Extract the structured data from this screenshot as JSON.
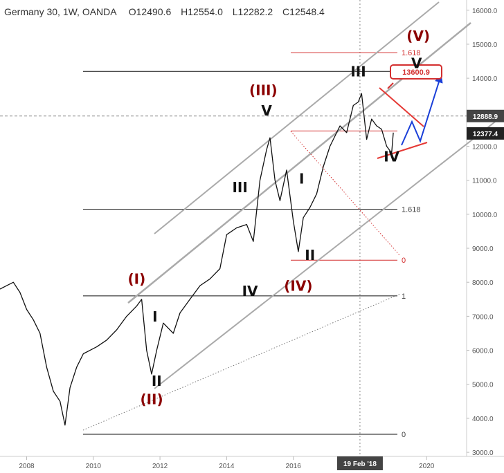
{
  "header": {
    "symbol_title": "Germany 30, 1W, OANDA",
    "open_label": "O",
    "open_value": "12490.6",
    "high_label": "H",
    "high_value": "12554.0",
    "low_label": "L",
    "low_value": "12282.2",
    "close_label": "C",
    "close_value": "12548.4"
  },
  "chart_data": {
    "type": "line",
    "title": "Germany 30, 1W, OANDA",
    "xlabel": "",
    "ylabel": "",
    "xlim": [
      2007.2,
      2021.2
    ],
    "ylim": [
      2880,
      16300
    ],
    "y_ticks": [
      "16000.0",
      "15000.0",
      "14000.0",
      "13000.0",
      "12000.0",
      "11000.0",
      "10000.0",
      "9000.0",
      "8000.0",
      "7000.0",
      "6000.0",
      "5000.0",
      "4000.0",
      "3000.0"
    ],
    "y_tick_values": [
      16000,
      15000,
      14000,
      13000,
      12000,
      11000,
      10000,
      9000,
      8000,
      7000,
      6000,
      5000,
      4000,
      3000
    ],
    "x_ticks": [
      "2008",
      "2010",
      "2012",
      "2014",
      "2016",
      "2020"
    ],
    "x_tick_values": [
      2008,
      2010,
      2012,
      2014,
      2016,
      2020
    ],
    "x_highlight_label": "19 Feb '18",
    "x_highlight_value": 2018.0,
    "price_badges": [
      {
        "label": "12888.9",
        "value": 12888.9,
        "color": "#444444"
      },
      {
        "label": "12377.4",
        "value": 12377.4,
        "color": "#222222"
      }
    ],
    "series": [
      {
        "x": [
          2007.2,
          2007.4,
          2007.6,
          2007.8,
          2008.0,
          2008.2,
          2008.4,
          2008.6,
          2008.8,
          2009.0,
          2009.15,
          2009.3,
          2009.5,
          2009.7,
          2009.9,
          2010.1,
          2010.4,
          2010.7,
          2011.0,
          2011.3,
          2011.45,
          2011.6,
          2011.75,
          2011.9,
          2012.1,
          2012.4,
          2012.6,
          2012.9,
          2013.2,
          2013.5,
          2013.8,
          2014.0,
          2014.3,
          2014.6,
          2014.8,
          2015.0,
          2015.2,
          2015.3,
          2015.45,
          2015.6,
          2015.8,
          2016.0,
          2016.15,
          2016.3,
          2016.5,
          2016.7,
          2016.9,
          2017.1,
          2017.4,
          2017.6,
          2017.8,
          2017.95,
          2018.05,
          2018.2,
          2018.35,
          2018.5,
          2018.65,
          2018.8,
          2018.95,
          2019.0
        ],
        "y": [
          7800,
          7900,
          8000,
          7700,
          7200,
          6900,
          6500,
          5500,
          4800,
          4500,
          3800,
          4900,
          5500,
          5900,
          6000,
          6100,
          6300,
          6600,
          7000,
          7300,
          7500,
          6000,
          5300,
          6000,
          6800,
          6500,
          7100,
          7500,
          7900,
          8100,
          8400,
          9400,
          9600,
          9700,
          9200,
          11000,
          11900,
          12250,
          11000,
          10400,
          11300,
          9800,
          8900,
          9900,
          10200,
          10600,
          11400,
          12000,
          12600,
          12400,
          13200,
          13300,
          13550,
          12200,
          12800,
          12600,
          12500,
          12000,
          11800,
          12400
        ]
      }
    ],
    "horizontal_levels": [
      {
        "label": "1.618",
        "value": 14750,
        "color": "#d32f2f"
      },
      {
        "label": "",
        "value": 14200,
        "color": "#111111"
      },
      {
        "label": "",
        "value": 12450,
        "color": "#d32f2f"
      },
      {
        "label": "1.618",
        "value": 10150,
        "color": "#111111"
      },
      {
        "label": "0",
        "value": 8650,
        "color": "#d32f2f"
      },
      {
        "label": "1",
        "value": 7600,
        "color": "#111111"
      },
      {
        "label": "0",
        "value": 3530,
        "color": "#111111"
      }
    ],
    "callout": {
      "label": "13600.9",
      "value": 13600.9
    },
    "wave_labels": [
      {
        "text": "(I)",
        "x": 2011.3,
        "y": 7950,
        "style": "red"
      },
      {
        "text": "I",
        "x": 2011.85,
        "y": 6850,
        "style": "black"
      },
      {
        "text": "II",
        "x": 2011.9,
        "y": 4950,
        "style": "black"
      },
      {
        "text": "(II)",
        "x": 2011.75,
        "y": 4420,
        "style": "red"
      },
      {
        "text": "III",
        "x": 2014.4,
        "y": 10650,
        "style": "black"
      },
      {
        "text": "IV",
        "x": 2014.7,
        "y": 7600,
        "style": "black"
      },
      {
        "text": "V",
        "x": 2015.2,
        "y": 12900,
        "style": "black"
      },
      {
        "text": "(III)",
        "x": 2015.1,
        "y": 13500,
        "style": "red"
      },
      {
        "text": "I",
        "x": 2016.25,
        "y": 10900,
        "style": "black"
      },
      {
        "text": "II",
        "x": 2016.5,
        "y": 8650,
        "style": "black"
      },
      {
        "text": "(IV)",
        "x": 2016.15,
        "y": 7750,
        "style": "red"
      },
      {
        "text": "III",
        "x": 2017.95,
        "y": 14050,
        "style": "black"
      },
      {
        "text": "IV",
        "x": 2018.95,
        "y": 11550,
        "style": "black"
      },
      {
        "text": "V",
        "x": 2019.7,
        "y": 14300,
        "style": "black"
      },
      {
        "text": "(V)",
        "x": 2019.75,
        "y": 15100,
        "style": "red"
      }
    ]
  }
}
